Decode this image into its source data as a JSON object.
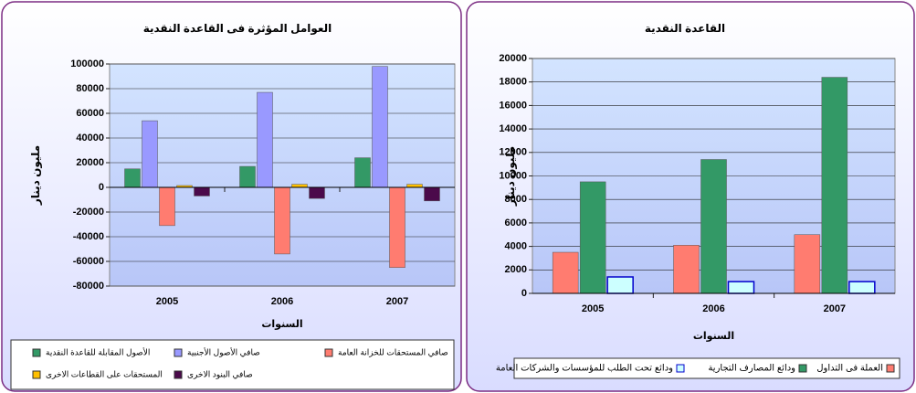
{
  "chart_data": [
    {
      "type": "bar",
      "title": "العوامل المؤثرة  فى القاعدة النقدية",
      "y_label": "مليون دينار",
      "x_label": "السنوات",
      "categories": [
        "2005",
        "2006",
        "2007"
      ],
      "series": [
        {
          "name": "الأصول المقابلة للقاعدة النقدية",
          "color": "#339966",
          "values": [
            15000,
            17000,
            24000
          ]
        },
        {
          "name": "صافي الأصول الأجنبية",
          "color": "#9999ff",
          "values": [
            54000,
            77000,
            98000
          ]
        },
        {
          "name": "صافي المستحقات للخزانة العامة",
          "color": "#ff7c70",
          "values": [
            -31000,
            -54000,
            -65000
          ]
        },
        {
          "name": "المستحقات على القطاعات الاخرى",
          "color": "#ffc000",
          "values": [
            1500,
            2500,
            2500
          ]
        },
        {
          "name": "صافي البنود الاخرى",
          "color": "#4b0a4b",
          "values": [
            -7000,
            -9000,
            -11000
          ]
        }
      ],
      "ylim": [
        -80000,
        100000
      ],
      "yticks": [
        -80000,
        -60000,
        -40000,
        -20000,
        0,
        20000,
        40000,
        60000,
        80000,
        100000
      ],
      "grid": true
    },
    {
      "type": "bar",
      "title": "القاعدة النقدية",
      "y_label": "مليون دينار",
      "x_label": "السنوات",
      "categories": [
        "2005",
        "2006",
        "2007"
      ],
      "series": [
        {
          "name": "العملة فى التداول",
          "color": "#ff7c70",
          "values": [
            3500,
            4100,
            5000
          ]
        },
        {
          "name": "ودائع المصارف التجارية",
          "color": "#339966",
          "values": [
            9500,
            11400,
            18400
          ]
        },
        {
          "name": "ودائع تحت الطلب للمؤسسات والشركات العامة",
          "color": "#ccffff",
          "values": [
            1400,
            1000,
            1000
          ]
        }
      ],
      "ylim": [
        0,
        20000
      ],
      "yticks": [
        0,
        2000,
        4000,
        6000,
        8000,
        10000,
        12000,
        14000,
        16000,
        18000,
        20000
      ],
      "grid": true
    }
  ]
}
